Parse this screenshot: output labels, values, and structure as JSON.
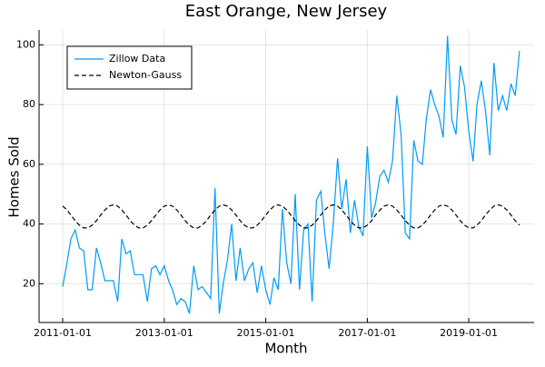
{
  "chart_data": {
    "type": "line",
    "title": "East Orange, New Jersey",
    "x_label": "Month",
    "y_label": "Homes Sold",
    "x": [
      "2011-01-01",
      "2011-02-01",
      "2011-03-01",
      "2011-04-01",
      "2011-05-01",
      "2011-06-01",
      "2011-07-01",
      "2011-08-01",
      "2011-09-01",
      "2011-10-01",
      "2011-11-01",
      "2011-12-01",
      "2012-01-01",
      "2012-02-01",
      "2012-03-01",
      "2012-04-01",
      "2012-05-01",
      "2012-06-01",
      "2012-07-01",
      "2012-08-01",
      "2012-09-01",
      "2012-10-01",
      "2012-11-01",
      "2012-12-01",
      "2013-01-01",
      "2013-02-01",
      "2013-03-01",
      "2013-04-01",
      "2013-05-01",
      "2013-06-01",
      "2013-07-01",
      "2013-08-01",
      "2013-09-01",
      "2013-10-01",
      "2013-11-01",
      "2013-12-01",
      "2014-01-01",
      "2014-02-01",
      "2014-03-01",
      "2014-04-01",
      "2014-05-01",
      "2014-06-01",
      "2014-07-01",
      "2014-08-01",
      "2014-09-01",
      "2014-10-01",
      "2014-11-01",
      "2014-12-01",
      "2015-01-01",
      "2015-02-01",
      "2015-03-01",
      "2015-04-01",
      "2015-05-01",
      "2015-06-01",
      "2015-07-01",
      "2015-08-01",
      "2015-09-01",
      "2015-10-01",
      "2015-11-01",
      "2015-12-01",
      "2016-01-01",
      "2016-02-01",
      "2016-03-01",
      "2016-04-01",
      "2016-05-01",
      "2016-06-01",
      "2016-07-01",
      "2016-08-01",
      "2016-09-01",
      "2016-10-01",
      "2016-11-01",
      "2016-12-01",
      "2017-01-01",
      "2017-02-01",
      "2017-03-01",
      "2017-04-01",
      "2017-05-01",
      "2017-06-01",
      "2017-07-01",
      "2017-08-01",
      "2017-09-01",
      "2017-10-01",
      "2017-11-01",
      "2017-12-01",
      "2018-01-01",
      "2018-02-01",
      "2018-03-01",
      "2018-04-01",
      "2018-05-01",
      "2018-06-01",
      "2018-07-01",
      "2018-08-01",
      "2018-09-01",
      "2018-10-01",
      "2018-11-01",
      "2018-12-01",
      "2019-01-01",
      "2019-02-01",
      "2019-03-01",
      "2019-04-01",
      "2019-05-01",
      "2019-06-01",
      "2019-07-01",
      "2019-08-01",
      "2019-09-01",
      "2019-10-01",
      "2019-11-01",
      "2019-12-01",
      "2020-01-01"
    ],
    "series": [
      {
        "name": "Zillow Data",
        "color": "#009af9",
        "dash": false,
        "values": [
          19,
          27,
          35,
          38,
          32,
          31,
          18,
          18,
          32,
          27,
          21,
          21,
          21,
          14,
          35,
          30,
          31,
          23,
          23,
          23,
          14,
          25,
          26,
          23,
          26,
          21,
          18,
          13,
          15,
          14,
          10,
          26,
          18,
          19,
          17,
          15,
          52,
          10,
          20,
          28,
          40,
          21,
          32,
          21,
          25,
          27,
          17,
          26,
          18,
          13,
          22,
          18,
          45,
          27,
          20,
          50,
          18,
          38,
          40,
          14,
          48,
          51,
          37,
          25,
          40,
          62,
          45,
          55,
          37,
          48,
          39,
          36,
          66,
          42,
          47,
          56,
          58,
          54,
          61,
          83,
          70,
          37,
          35,
          68,
          61,
          60,
          75,
          85,
          80,
          76,
          69,
          103,
          75,
          70,
          93,
          86,
          71,
          61,
          80,
          88,
          78,
          63,
          94,
          78,
          83,
          78,
          87,
          83,
          98
        ]
      },
      {
        "name": "Newton-Gauss",
        "color": "#000000",
        "dash": true,
        "values": [
          46.0,
          44.7,
          43.0,
          41.1,
          39.6,
          38.7,
          38.7,
          39.6,
          41.1,
          43.0,
          44.7,
          46.0,
          46.4,
          46.0,
          44.7,
          43.0,
          41.1,
          39.6,
          38.7,
          38.7,
          39.6,
          41.1,
          43.0,
          44.7,
          46.0,
          46.4,
          46.0,
          44.7,
          43.0,
          41.1,
          39.6,
          38.7,
          38.7,
          39.6,
          41.1,
          43.0,
          44.7,
          46.0,
          46.4,
          46.0,
          44.7,
          43.0,
          41.1,
          39.6,
          38.7,
          38.7,
          39.6,
          41.1,
          43.0,
          44.7,
          46.0,
          46.4,
          46.0,
          44.7,
          43.0,
          41.1,
          39.6,
          38.7,
          38.7,
          39.6,
          41.1,
          43.0,
          44.7,
          46.0,
          46.4,
          46.0,
          44.7,
          43.0,
          41.1,
          39.6,
          38.7,
          38.7,
          39.6,
          41.1,
          43.0,
          44.7,
          46.0,
          46.4,
          46.0,
          44.7,
          43.0,
          41.1,
          39.6,
          38.7,
          38.7,
          39.6,
          41.1,
          43.0,
          44.7,
          46.0,
          46.4,
          46.0,
          44.7,
          43.0,
          41.1,
          39.6,
          38.7,
          38.7,
          39.6,
          41.1,
          43.0,
          44.7,
          46.0,
          46.4,
          46.0,
          44.7,
          43.0,
          41.1,
          39.6
        ]
      }
    ],
    "xlim": [
      "2010-07-15",
      "2020-04-15"
    ],
    "xticks": [
      "2011-01-01",
      "2013-01-01",
      "2015-01-01",
      "2017-01-01",
      "2019-01-01"
    ],
    "ylim": [
      7,
      105
    ],
    "yticks": [
      20,
      40,
      60,
      80,
      100
    ],
    "grid": true,
    "legend": "upper left"
  }
}
